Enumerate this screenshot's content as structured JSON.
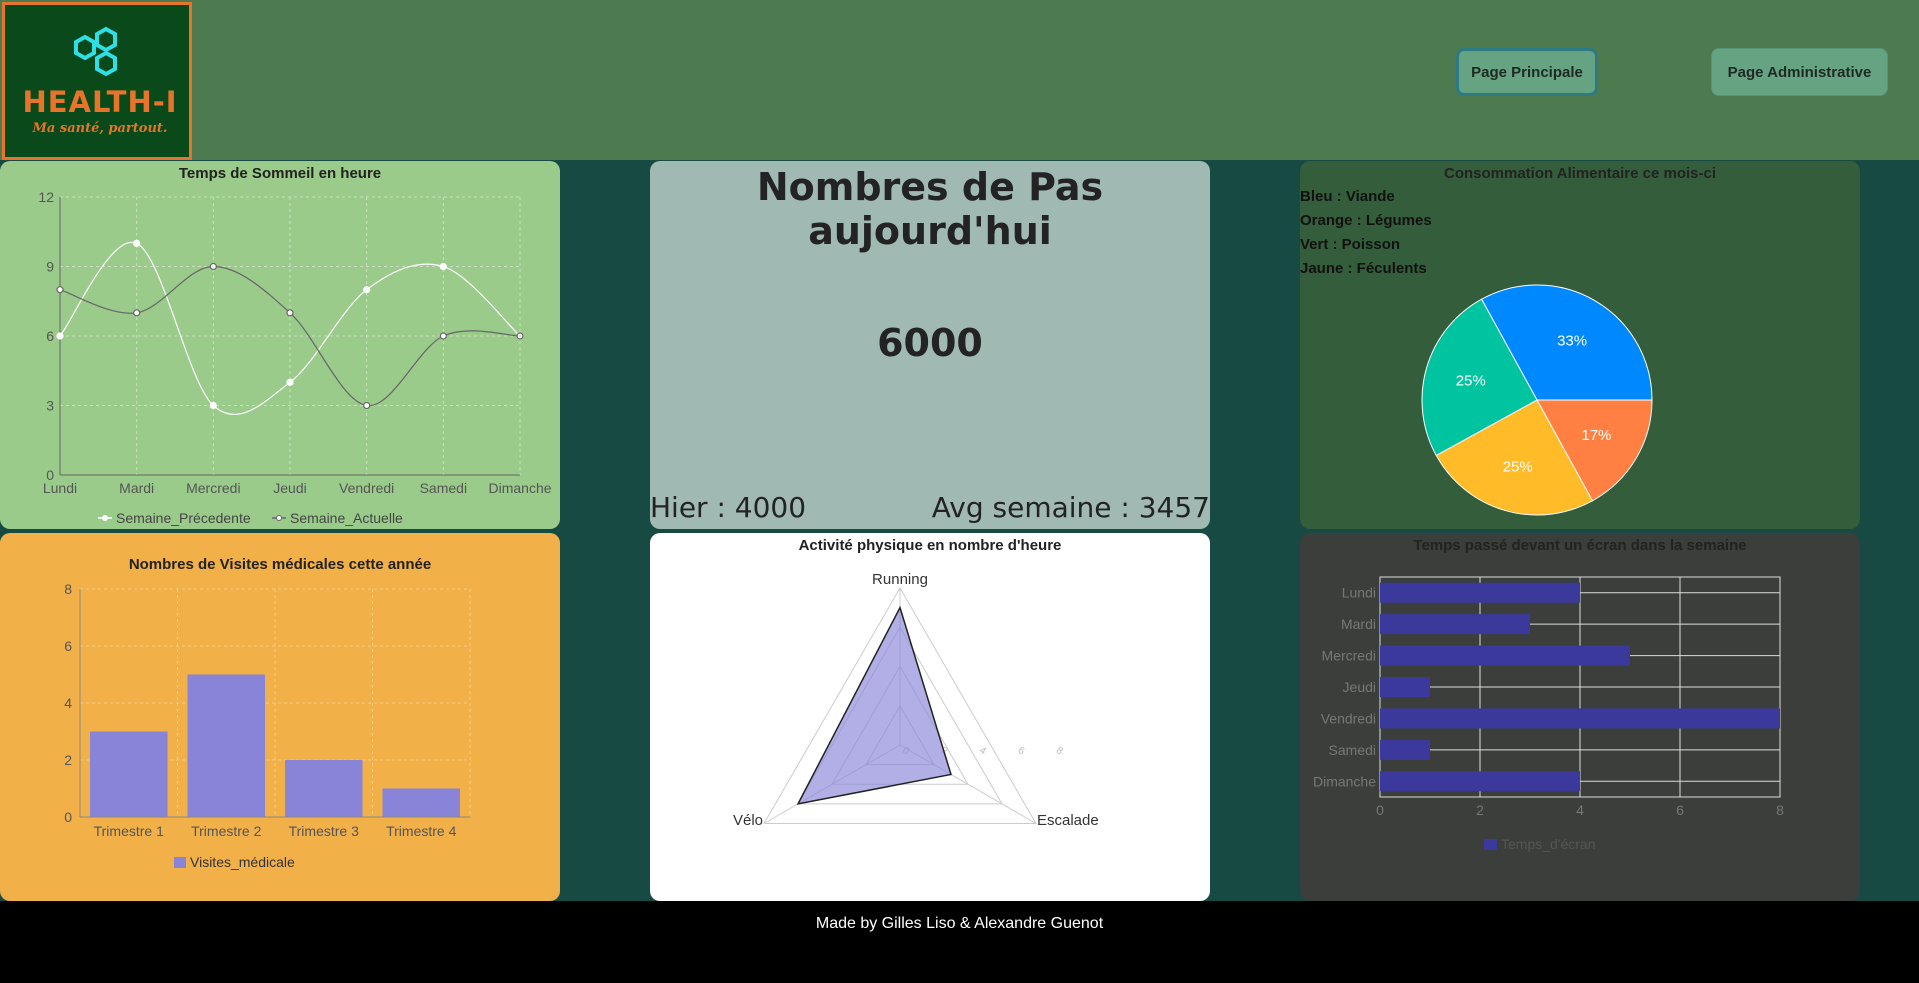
{
  "header": {
    "logo_text": "HEALTH-I",
    "logo_tagline": "Ma santé, partout.",
    "nav": {
      "main_label": "Page Principale",
      "admin_label": "Page Administrative"
    }
  },
  "colors": {
    "header_bg": "#4e7a4f",
    "page_bg": "#174a43",
    "sleep_bg": "#9acb8b",
    "steps_bg": "#a0bab3",
    "food_bg": "#345d3b",
    "visits_bg": "#f2b049",
    "activity_bg": "#ffffff",
    "screen_bg": "#3b3e3b",
    "bar_purple": "#8884d8",
    "screen_bar": "#3b3a9c"
  },
  "sleep": {
    "title": "Temps de Sommeil en heure",
    "chart_data": {
      "type": "line",
      "categories": [
        "Lundi",
        "Mardi",
        "Mercredi",
        "Jeudi",
        "Vendredi",
        "Samedi",
        "Dimanche"
      ],
      "yticks": [
        "0",
        "3",
        "6",
        "9",
        "12"
      ],
      "ylim": [
        0,
        12
      ],
      "series": [
        {
          "name": "Semaine_Précedente",
          "values": [
            6,
            10,
            3,
            4,
            8,
            9,
            6
          ],
          "color": "#ffffff"
        },
        {
          "name": "Semaine_Actuelle",
          "values": [
            8,
            7,
            9,
            7,
            3,
            6,
            6
          ],
          "color": "#666666"
        }
      ],
      "grid": true,
      "legend": "bottom"
    }
  },
  "steps": {
    "title": "Nombres de Pas aujourd'hui",
    "value": "6000",
    "yesterday": "Hier : 4000",
    "avg": "Avg semaine : 3457"
  },
  "food": {
    "title": "Consommation Alimentaire ce mois-ci",
    "legend": [
      "Bleu : Viande",
      "Orange : Légumes",
      "Vert : Poisson",
      "Jaune : Féculents"
    ],
    "chart_data": {
      "type": "pie",
      "slices": [
        {
          "value": 33,
          "label": "33%",
          "color": "#0088fe"
        },
        {
          "value": 17,
          "label": "17%",
          "color": "#ff8042"
        },
        {
          "value": 25,
          "label": "25%",
          "color": "#ffbb28"
        },
        {
          "value": 25,
          "label": "25%",
          "color": "#00c49f"
        }
      ]
    }
  },
  "visits": {
    "title": "Nombres de Visites médicales cette année",
    "chart_data": {
      "type": "bar",
      "categories": [
        "Trimestre 1",
        "Trimestre 2",
        "Trimestre 3",
        "Trimestre 4"
      ],
      "series": [
        {
          "name": "Visites_médicale",
          "values": [
            3,
            5,
            2,
            1
          ]
        }
      ],
      "yticks": [
        "0",
        "2",
        "4",
        "6",
        "8"
      ],
      "ylim": [
        0,
        8
      ],
      "grid": true,
      "legend": "bottom"
    }
  },
  "activity": {
    "title": "Activité physique en nombre d'heure",
    "chart_data": {
      "type": "radar",
      "axes": [
        "Running",
        "Escalade",
        "Vélo"
      ],
      "values": [
        7,
        3,
        6
      ],
      "max": 8,
      "ticks": [
        "0",
        "2",
        "4",
        "6",
        "8"
      ]
    }
  },
  "screen": {
    "title": "Temps passé devant un écran dans la semaine",
    "chart_data": {
      "type": "bar",
      "orientation": "horizontal",
      "categories": [
        "Lundi",
        "Mardi",
        "Mercredi",
        "Jeudi",
        "Vendredi",
        "Samedi",
        "Dimanche"
      ],
      "series": [
        {
          "name": "Temps_d'écran",
          "values": [
            4,
            3,
            5,
            1,
            8,
            1,
            4
          ]
        }
      ],
      "xticks": [
        "0",
        "2",
        "4",
        "6",
        "8"
      ],
      "xlim": [
        0,
        8
      ],
      "grid": true,
      "legend": "bottom"
    }
  },
  "footer": {
    "text": "Made by Gilles Liso & Alexandre Guenot"
  }
}
